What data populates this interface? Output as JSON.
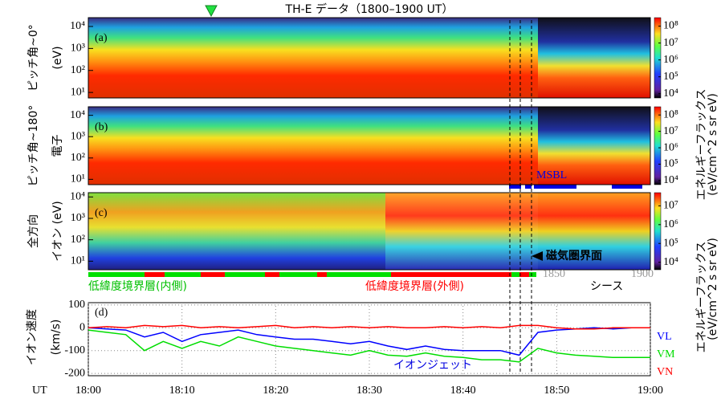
{
  "title": "TH-E データ（1800–1900 UT）",
  "panels": [
    {
      "label": "(a)",
      "ylabel": [
        "ピッチ角~0°",
        "(eV)"
      ],
      "ylim": [
        0.75,
        4.4
      ],
      "yticks": [
        {
          "value": 4,
          "label": "10⁴"
        },
        {
          "value": 3,
          "label": "10³"
        },
        {
          "value": 2,
          "label": "10²"
        },
        {
          "value": 1,
          "label": "10¹"
        }
      ],
      "clim": [
        3.75,
        8.5
      ],
      "cticks": [
        {
          "value": 8,
          "label": "10⁸"
        },
        {
          "value": 7,
          "label": "10⁷"
        },
        {
          "value": 6,
          "label": "10⁶"
        },
        {
          "value": 5,
          "label": "10⁵"
        },
        {
          "value": 4,
          "label": "10⁴"
        }
      ]
    },
    {
      "label": "(b)",
      "ylabel": [
        "ピッチ角~180°",
        "電子"
      ],
      "ylim": [
        0.75,
        4.4
      ],
      "yticks": [
        {
          "value": 4,
          "label": "10⁴"
        },
        {
          "value": 3,
          "label": "10³"
        },
        {
          "value": 2,
          "label": "10²"
        },
        {
          "value": 1,
          "label": "10¹"
        }
      ],
      "clim": [
        3.75,
        8.5
      ],
      "cticks": [
        {
          "value": 8,
          "label": "10⁸"
        },
        {
          "value": 7,
          "label": "10⁷"
        },
        {
          "value": 6,
          "label": "10⁶"
        },
        {
          "value": 5,
          "label": "10⁵"
        },
        {
          "value": 4,
          "label": "10⁴"
        }
      ]
    },
    {
      "label": "(c)",
      "ylabel": [
        "全方向",
        "イオン (eV)"
      ],
      "ylim": [
        0.6,
        4.2
      ],
      "yticks": [
        {
          "value": 4,
          "label": "10⁴"
        },
        {
          "value": 3,
          "label": "10³"
        },
        {
          "value": 2,
          "label": "10²"
        },
        {
          "value": 1,
          "label": "10¹"
        }
      ],
      "clim": [
        3.6,
        7.7
      ],
      "cticks": [
        {
          "value": 7,
          "label": "10⁷"
        },
        {
          "value": 6,
          "label": "10⁶"
        },
        {
          "value": 5,
          "label": "10⁵"
        },
        {
          "value": 4,
          "label": "10⁴"
        }
      ]
    }
  ],
  "colorbar_label": [
    "エネルギーフラックス",
    "(eV/cm^2 s sr eV)"
  ],
  "faint_ticks": [
    "1850",
    "1900"
  ],
  "annotations": {
    "msbl": "MSBL",
    "magnetopause": "磁気圏界面",
    "llbl_inner": "低緯度境界層(内側)",
    "llbl_outer": "低緯度境界層(外側)",
    "sheath": "シース",
    "jet": "イオンジェット",
    "ut": "UT"
  },
  "chart_data": {
    "type": "line",
    "label": "(d)",
    "ylabel": [
      "イオン速度",
      "(km/s)"
    ],
    "x": [
      0,
      2,
      4,
      6,
      8,
      10,
      12,
      14,
      16,
      18,
      20,
      22,
      24,
      26,
      28,
      30,
      32,
      34,
      36,
      38,
      40,
      42,
      44,
      46,
      48,
      50,
      52,
      54,
      56,
      58,
      60
    ],
    "xlim": [
      0,
      60
    ],
    "xticks": [
      {
        "value": 0,
        "label": "18:00"
      },
      {
        "value": 10,
        "label": "18:10"
      },
      {
        "value": 20,
        "label": "18:20"
      },
      {
        "value": 30,
        "label": "18:30"
      },
      {
        "value": 40,
        "label": "18:40"
      },
      {
        "value": 50,
        "label": "18:50"
      },
      {
        "value": 60,
        "label": "19:00"
      }
    ],
    "ylim": [
      -210,
      110
    ],
    "yticks": [
      100,
      0,
      -100,
      -200
    ],
    "grid": true,
    "series": [
      {
        "name": "VL",
        "color": "#0000ff",
        "values": [
          0,
          -5,
          -10,
          -40,
          -20,
          -60,
          -30,
          -20,
          -10,
          -30,
          -40,
          -50,
          -50,
          -60,
          -70,
          -60,
          -80,
          -95,
          -80,
          -95,
          -100,
          -100,
          -100,
          -120,
          -20,
          -10,
          -5,
          0,
          -5,
          0,
          0
        ]
      },
      {
        "name": "VM",
        "color": "#00dd00",
        "values": [
          -10,
          -20,
          -30,
          -100,
          -60,
          -90,
          -60,
          -80,
          -40,
          -60,
          -80,
          -90,
          -100,
          -110,
          -120,
          -100,
          -120,
          -125,
          -110,
          -125,
          -130,
          -140,
          -140,
          -150,
          -90,
          -110,
          -120,
          -125,
          -130,
          -130,
          -130
        ]
      },
      {
        "name": "VN",
        "color": "#ff0000",
        "values": [
          0,
          5,
          0,
          10,
          5,
          10,
          0,
          5,
          0,
          5,
          10,
          0,
          5,
          0,
          5,
          0,
          5,
          0,
          0,
          5,
          0,
          5,
          0,
          10,
          10,
          0,
          -5,
          -5,
          0,
          0,
          0
        ]
      }
    ]
  }
}
